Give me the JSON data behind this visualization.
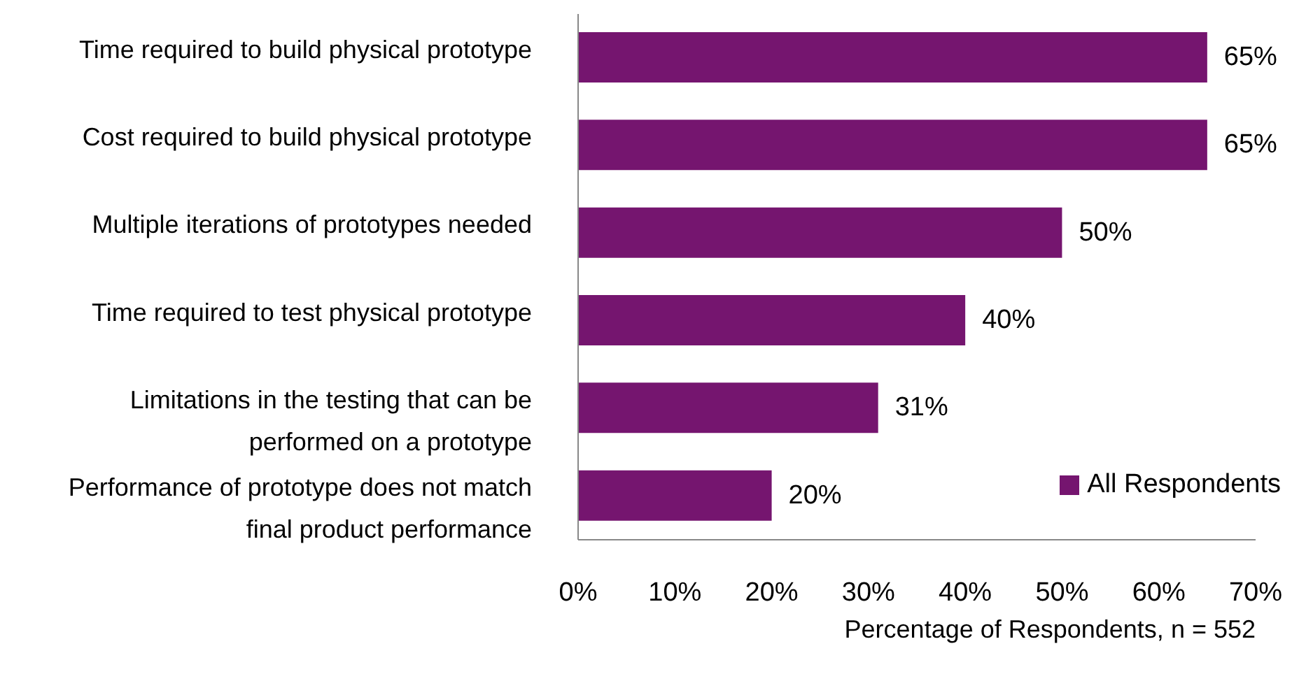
{
  "chart_data": {
    "type": "bar",
    "orientation": "horizontal",
    "categories": [
      "Time required to build physical prototype",
      "Cost required to build physical prototype",
      "Multiple iterations of prototypes needed",
      "Time required to test physical prototype",
      "Limitations in the testing that can be performed on a prototype",
      "Performance of prototype does not match final product performance"
    ],
    "series": [
      {
        "name": "All Respondents",
        "color": "#75156f",
        "values": [
          65,
          65,
          50,
          40,
          31,
          20
        ]
      }
    ],
    "xlabel": "Percentage of Respondents, n = 552",
    "xlim": [
      0,
      70
    ],
    "xticks": [
      {
        "value": 0,
        "label": "0%"
      },
      {
        "value": 10,
        "label": "10%"
      },
      {
        "value": 20,
        "label": "20%"
      },
      {
        "value": 30,
        "label": "30%"
      },
      {
        "value": 40,
        "label": "40%"
      },
      {
        "value": 50,
        "label": "50%"
      },
      {
        "value": 60,
        "label": "60%"
      },
      {
        "value": 70,
        "label": "70%"
      }
    ],
    "value_labels": [
      "65%",
      "65%",
      "50%",
      "40%",
      "31%",
      "20%"
    ],
    "grid": false,
    "legend": "bottom right"
  }
}
